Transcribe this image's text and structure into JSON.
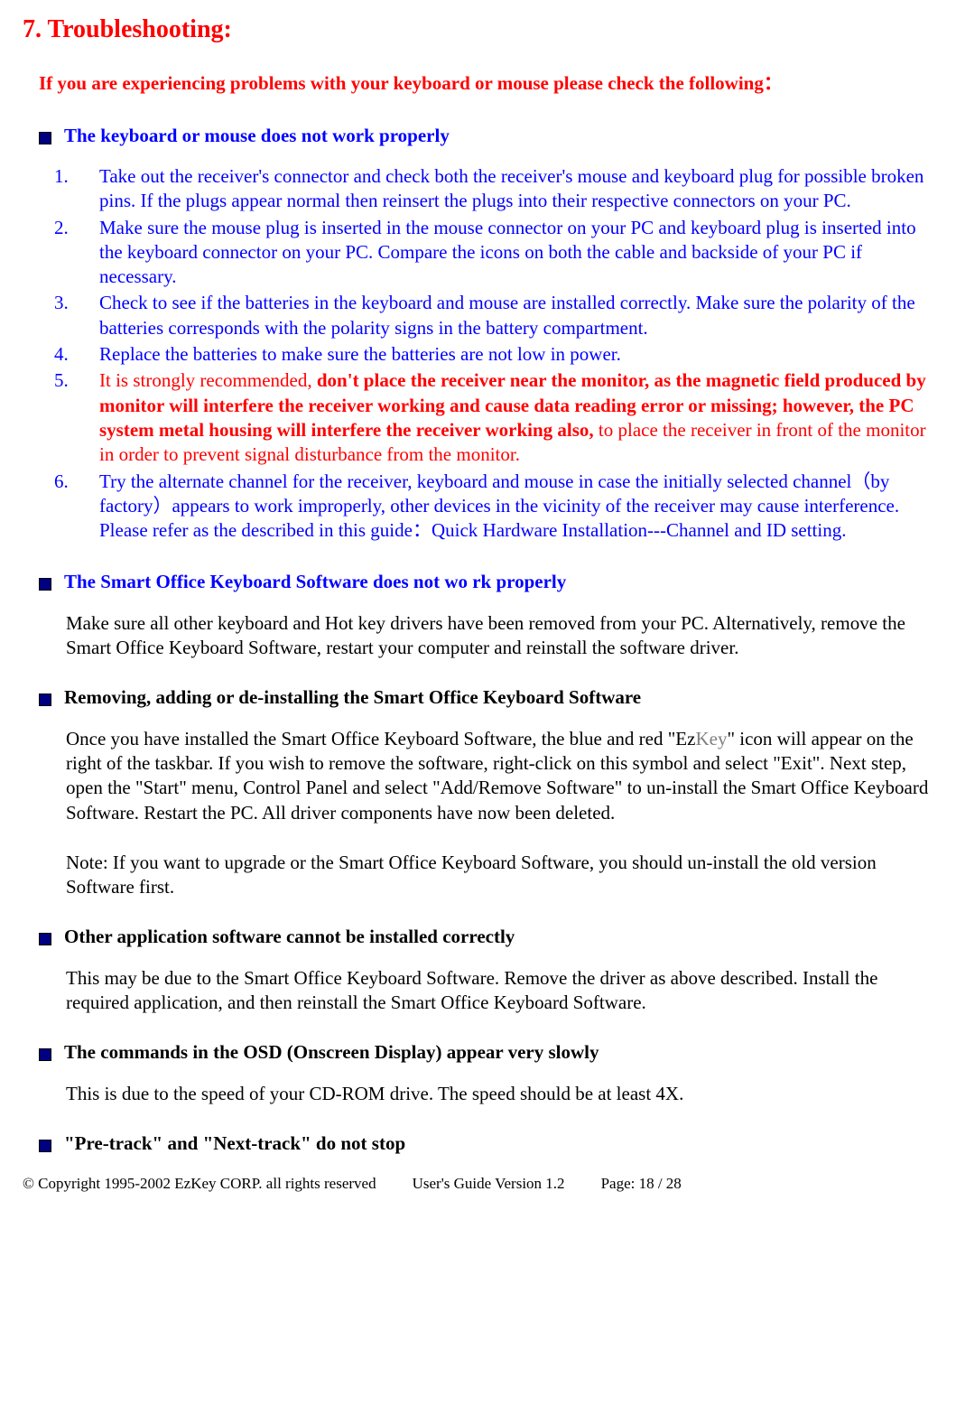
{
  "title": "7. Troubleshooting:",
  "intro": "If you are experiencing problems with your keyboard or mouse please check the following：",
  "sections": {
    "s1": {
      "title": "The keyboard or mouse does not work properly",
      "items": {
        "i1_num": "1.",
        "i1": "Take out the receiver's connector and check both the receiver's mouse and keyboard plug for possible broken pins. If the plugs appear normal then reinsert the plugs into their respective connectors on your PC.",
        "i2_num": "2.",
        "i2": "Make sure the mouse plug is inserted in the mouse connector on your PC and keyboard plug is inserted into the keyboard connector on your PC. Compare the icons on both the cable and backside of your PC if necessary.",
        "i3_num": "3.",
        "i3": "Check to see if the batteries in the keyboard and mouse are installed correctly. Make sure the polarity of the batteries corresponds with the polarity signs in the battery compartment.",
        "i4_num": "4.",
        "i4": "Replace the batteries to make sure the batteries are not low in power.",
        "i5_num": "5.",
        "i5_a": "It is strongly recommended, ",
        "i5_b": "don't place the receiver near the monitor, as the magnetic field produced by monitor will interfere the receiver working and cause data reading error or missing; however, the PC system metal housing will interfere the receiver working also, ",
        "i5_c": "to place the receiver in front of the monitor in order to prevent signal disturbance from the monitor.",
        "i6_num": "6.",
        "i6": "Try the alternate channel for the receiver, keyboard and mouse in case the initially selected channel（by factory）appears to work improperly, other devices in the vicinity of the receiver may cause interference. Please refer as the described in this guide：Quick Hardware Installation---Channel and ID setting."
      }
    },
    "s2": {
      "title": "The Smart Office Keyboard Software does not wo rk properly",
      "para": "Make sure all other keyboard and Hot key drivers have been removed from your PC. Alternatively, remove the Smart Office Keyboard Software, restart your computer and reinstall the software driver."
    },
    "s3": {
      "title": "Removing, adding or de-installing the Smart Office Keyboard Software",
      "para1_a": "Once you have installed the Smart Office Keyboard Software, the blue and red \"Ez",
      "para1_b": "Key",
      "para1_c": "\" icon will appear on the right of the taskbar. If you wish to remove the software, right-click on this symbol and select \"Exit\". Next step, open the \"Start\" menu, Control Panel and select \"Add/Remove Software\" to un-install the Smart Office Keyboard Software. Restart the PC. All driver components have now been deleted.",
      "para2": "Note: If you want to upgrade or the Smart Office Keyboard Software, you should un-install the old version Software first."
    },
    "s4": {
      "title": "Other application software cannot be installed correctly",
      "para": "This may be due to the Smart Office Keyboard Software. Remove the driver as above described. Install the required application, and then reinstall the Smart Office Keyboard Software."
    },
    "s5": {
      "title": "The commands in the OSD (Onscreen Display) appear very slowly",
      "para": "This is due to the speed of your CD-ROM drive. The speed should be at least 4X."
    },
    "s6": {
      "title": "\"Pre-track\" and \"Next-track\" do not stop"
    }
  },
  "footer": {
    "copyright": "© Copyright 1995-2002 EzKey CORP. all rights reserved",
    "version": "User's Guide Version 1.2",
    "page": "Page: 18 / 28"
  },
  "colors": {
    "red": "#ff0000",
    "blue": "#0000ff",
    "black": "#000000",
    "gray": "#808080",
    "bullet": "#000080",
    "background": "#ffffff"
  },
  "fonts": {
    "body_size": 21,
    "title_size": 28,
    "footer_size": 17,
    "family": "Times New Roman"
  }
}
